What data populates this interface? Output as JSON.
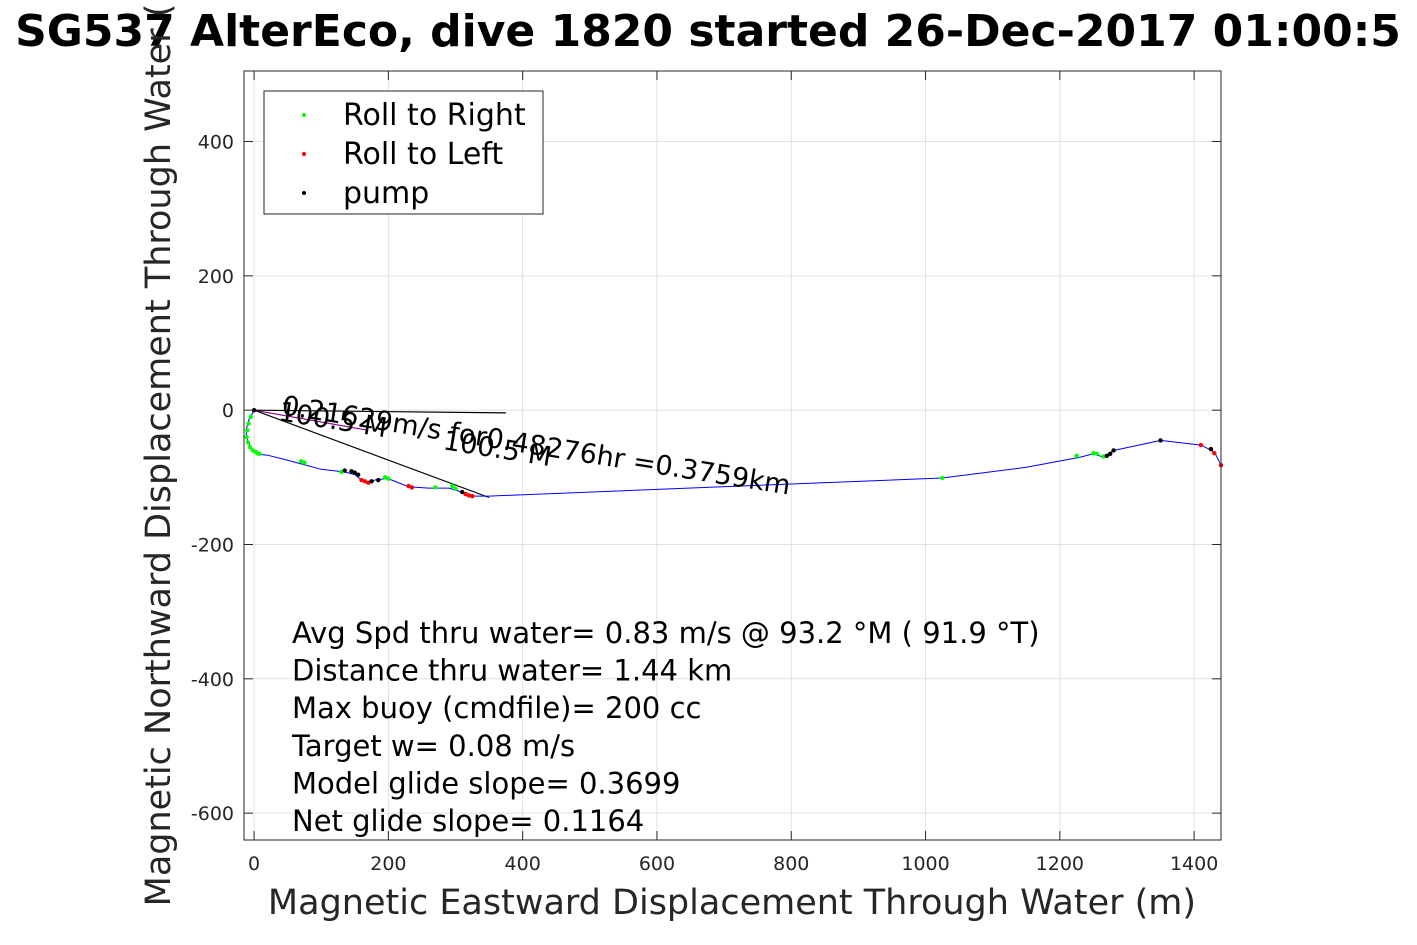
{
  "chart_data": {
    "type": "line",
    "title": "SG537 AlterEco, dive 1820 started 26-Dec-2017 01:00:5",
    "xlabel": "Magnetic Eastward Displacement Through Water (m)",
    "ylabel": "Magnetic Northward Displacement Through Water (",
    "xlim": [
      -15,
      1440
    ],
    "ylim": [
      -640,
      505
    ],
    "xticks": [
      0,
      200,
      400,
      600,
      800,
      1000,
      1200,
      1400
    ],
    "yticks": [
      400,
      200,
      0,
      -200,
      -400,
      -600
    ],
    "xtick_labels": [
      "0",
      "200",
      "400",
      "600",
      "800",
      "1000",
      "1200",
      "1400"
    ],
    "ytick_labels": [
      "400",
      "200",
      "0",
      "-200",
      "-400",
      "-600"
    ],
    "grid": true,
    "legend_position": "top-left",
    "legend": [
      {
        "label": "Roll to Right",
        "color": "#00ff00"
      },
      {
        "label": "Roll to Left",
        "color": "#ff0000"
      },
      {
        "label": "pump",
        "color": "#000000"
      }
    ],
    "track": {
      "color": "#0000ff",
      "x": [
        0,
        -8,
        -12,
        -10,
        -5,
        0,
        5,
        10,
        20,
        40,
        70,
        100,
        135,
        150,
        160,
        170,
        180,
        195,
        205,
        230,
        260,
        290,
        310,
        320,
        330,
        350,
        600,
        800,
        1025,
        1150,
        1230,
        1250,
        1265,
        1280,
        1350,
        1410,
        1430,
        1440
      ],
      "y": [
        0,
        -15,
        -30,
        -45,
        -55,
        -62,
        -65,
        -66,
        -67,
        -72,
        -80,
        -88,
        -92,
        -96,
        -104,
        -108,
        -104,
        -102,
        -104,
        -114,
        -116,
        -116,
        -122,
        -127,
        -128,
        -128,
        -118,
        -110,
        -101,
        -85,
        -70,
        -65,
        -70,
        -60,
        -45,
        -52,
        -62,
        -82
      ]
    },
    "roll_right_points": {
      "color": "#00ff00",
      "x": [
        -5,
        -8,
        -10,
        -11,
        -9,
        -6,
        -2,
        2,
        5,
        8,
        70,
        75,
        130,
        195,
        200,
        270,
        295,
        300,
        1025,
        1225,
        1250,
        1255,
        1265
      ],
      "y": [
        -10,
        -20,
        -30,
        -40,
        -48,
        -55,
        -60,
        -62,
        -64,
        -65,
        -76,
        -78,
        -92,
        -100,
        -102,
        -115,
        -113,
        -117,
        -101,
        -68,
        -64,
        -65,
        -69
      ]
    },
    "roll_left_points": {
      "color": "#ff0000",
      "x": [
        160,
        165,
        170,
        230,
        235,
        315,
        320,
        325,
        1410,
        1425,
        1430,
        1440
      ],
      "y": [
        -104,
        -106,
        -108,
        -113,
        -115,
        -125,
        -127,
        -128,
        -52,
        -58,
        -64,
        -82
      ]
    },
    "pump_points": {
      "color": "#000000",
      "x": [
        0,
        135,
        145,
        150,
        155,
        175,
        185,
        310,
        1270,
        1275,
        1280,
        1350,
        1425
      ],
      "y": [
        0,
        -90,
        -91,
        -93,
        -96,
        -106,
        -104,
        -122,
        -68,
        -65,
        -60,
        -45,
        -58
      ]
    },
    "depth_average_current": {
      "color": "#000000",
      "x": [
        0,
        375
      ],
      "y": [
        0,
        -4
      ]
    },
    "glide_line": {
      "color": "#000000",
      "x": [
        0,
        350
      ],
      "y": [
        0,
        -130
      ]
    },
    "glide_line_2": {
      "color": "#8b008b",
      "x": [
        0,
        170
      ],
      "y": [
        0,
        -30
      ]
    },
    "line_annotations": [
      {
        "text": "0.21629m/s for0.48276hr =0.3759km",
        "x": 40,
        "y": -6,
        "angle": 9
      },
      {
        "text": "100.5 M",
        "x": 35,
        "y": -15,
        "angle": 9
      },
      {
        "text": "100.5 M",
        "x": 280,
        "y": -58,
        "angle": 9
      }
    ],
    "annotations": [
      "Avg Spd thru water=  0.83 m/s @  93.2 °M ( 91.9 °T)",
      "Distance thru water=  1.44 km",
      "Max buoy (cmdfile)= 200 cc",
      "Target w= 0.08 m/s",
      "Model glide slope= 0.3699",
      "Net glide slope= 0.1164"
    ]
  }
}
